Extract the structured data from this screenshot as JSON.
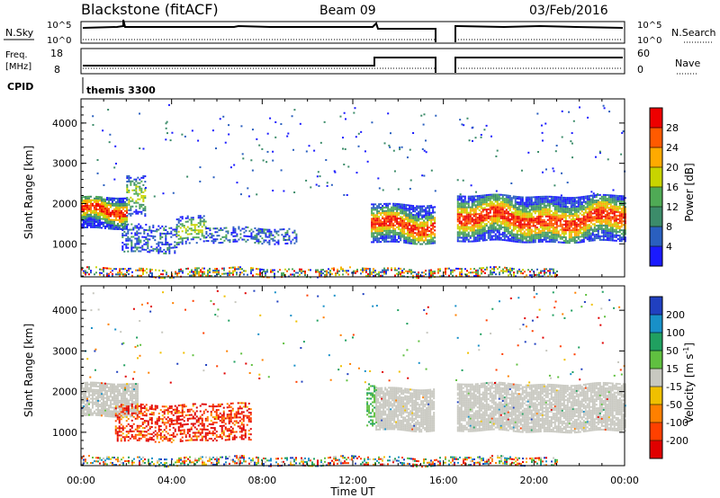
{
  "header": {
    "radar": "Blackstone (fitACF)",
    "beam": "Beam 09",
    "date": "03/Feb/2016"
  },
  "status_panels": {
    "nsky_label": "N.Sky",
    "nsearch_label": "N.Search",
    "nsky_ticks": [
      "10^5",
      "10^0"
    ],
    "freq_label_line1": "Freq.",
    "freq_label_line2": "[MHz]",
    "freq_ticks": [
      "18",
      "8"
    ],
    "nave_label": "Nave",
    "nave_ticks": [
      "60",
      "0"
    ],
    "cpid_label": "CPID",
    "cpid_value": "themis 3300"
  },
  "chart_data": [
    {
      "type": "heatmap",
      "name": "power",
      "xlabel": "Time UT",
      "ylabel": "Slant Range [km]",
      "x_ticks": [
        "00:00",
        "04:00",
        "08:00",
        "12:00",
        "16:00",
        "20:00",
        "00:00"
      ],
      "y_ticks": [
        "1000",
        "2000",
        "3000",
        "4000"
      ],
      "xlim_hours": [
        0,
        24
      ],
      "ylim_km": [
        180,
        4600
      ],
      "colorbar_label": "Power [dB]",
      "colorbar_ticks": [
        "4",
        "8",
        "12",
        "16",
        "20",
        "24",
        "28"
      ],
      "colorbar_colors": [
        "#1a1aff",
        "#2a5fbf",
        "#3c8c6a",
        "#4faa55",
        "#c8d400",
        "#ffaa00",
        "#ff5a00",
        "#ee0000"
      ],
      "data_gap_hours": [
        15.7,
        16.5
      ],
      "bands": [
        {
          "t": [
            0.0,
            2.0
          ],
          "r": [
            1380,
            2150
          ],
          "level": "high"
        },
        {
          "t": [
            2.0,
            2.8
          ],
          "r": [
            1700,
            2700
          ],
          "level": "mid"
        },
        {
          "t": [
            1.8,
            4.2
          ],
          "r": [
            800,
            1500
          ],
          "level": "low"
        },
        {
          "t": [
            4.2,
            5.5
          ],
          "r": [
            1000,
            1700
          ],
          "level": "mid"
        },
        {
          "t": [
            5.5,
            9.5
          ],
          "r": [
            1000,
            1400
          ],
          "level": "low"
        },
        {
          "t": [
            12.8,
            15.6
          ],
          "r": [
            1050,
            2000
          ],
          "level": "high"
        },
        {
          "t": [
            16.6,
            24.0
          ],
          "r": [
            1050,
            2200
          ],
          "level": "high"
        },
        {
          "t": [
            0.0,
            21.0
          ],
          "r": [
            200,
            400
          ],
          "level": "mixed"
        }
      ]
    },
    {
      "type": "heatmap",
      "name": "velocity",
      "xlabel": "Time UT",
      "ylabel": "Slant Range [km]",
      "x_ticks": [
        "00:00",
        "04:00",
        "08:00",
        "12:00",
        "16:00",
        "20:00",
        "00:00"
      ],
      "y_ticks": [
        "1000",
        "2000",
        "3000",
        "4000"
      ],
      "xlim_hours": [
        0,
        24
      ],
      "ylim_km": [
        180,
        4600
      ],
      "colorbar_label": "Velocity [m s",
      "colorbar_label_exp": "-1",
      "colorbar_ticks": [
        "200",
        "100",
        "50",
        "15",
        "-15",
        "-50",
        "-100",
        "-200"
      ],
      "colorbar_colors": [
        "#2040c0",
        "#1890c8",
        "#20a060",
        "#60c040",
        "#c8c8c0",
        "#f0c000",
        "#ff8000",
        "#ff4000",
        "#e00000"
      ],
      "bands": [
        {
          "t": [
            0.0,
            2.5
          ],
          "r": [
            1400,
            2200
          ],
          "velocity": "ground"
        },
        {
          "t": [
            1.5,
            7.5
          ],
          "r": [
            800,
            1700
          ],
          "velocity": "negative"
        },
        {
          "t": [
            12.6,
            13.0
          ],
          "r": [
            1100,
            2200
          ],
          "velocity": "positive"
        },
        {
          "t": [
            13.0,
            15.6
          ],
          "r": [
            1050,
            2100
          ],
          "velocity": "ground"
        },
        {
          "t": [
            16.6,
            24.0
          ],
          "r": [
            1050,
            2200
          ],
          "velocity": "ground"
        },
        {
          "t": [
            0.0,
            21.0
          ],
          "r": [
            200,
            400
          ],
          "velocity": "mixed"
        }
      ]
    }
  ]
}
